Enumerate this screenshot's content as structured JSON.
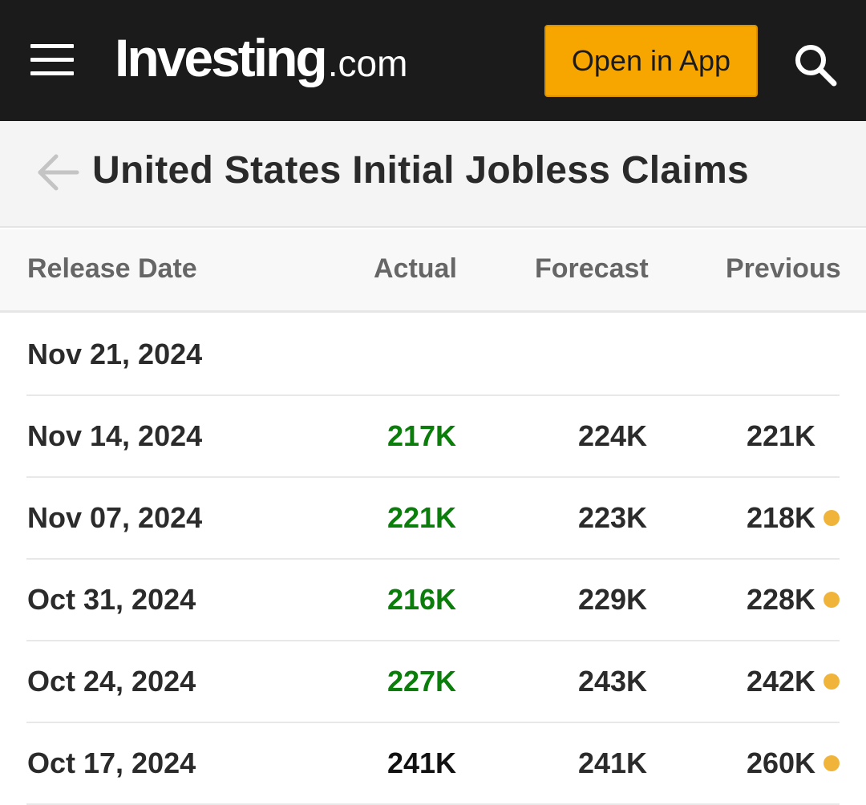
{
  "header": {
    "logo_main": "Investing",
    "logo_suffix": ".com",
    "open_app_label": "Open in App",
    "colors": {
      "bar": "#1b1b1b",
      "accent": "#f7a600"
    }
  },
  "page": {
    "title": "United States Initial Jobless Claims"
  },
  "table": {
    "columns": [
      "Release Date",
      "Actual",
      "Forecast",
      "Previous"
    ],
    "rows": [
      {
        "date": "Nov 21, 2024",
        "actual": "",
        "forecast": "",
        "previous": "",
        "revised": false
      },
      {
        "date": "Nov 14, 2024",
        "actual": "217K",
        "forecast": "224K",
        "previous": "221K",
        "revised": false,
        "actual_status": "better"
      },
      {
        "date": "Nov 07, 2024",
        "actual": "221K",
        "forecast": "223K",
        "previous": "218K",
        "revised": true,
        "actual_status": "better"
      },
      {
        "date": "Oct 31, 2024",
        "actual": "216K",
        "forecast": "229K",
        "previous": "228K",
        "revised": true,
        "actual_status": "better"
      },
      {
        "date": "Oct 24, 2024",
        "actual": "227K",
        "forecast": "243K",
        "previous": "242K",
        "revised": true,
        "actual_status": "better"
      },
      {
        "date": "Oct 17, 2024",
        "actual": "241K",
        "forecast": "241K",
        "previous": "260K",
        "revised": true,
        "actual_status": "neutral"
      }
    ],
    "colors": {
      "better": "#0a7d0a",
      "neutral": "#111111",
      "revised_dot": "#f0b43a"
    }
  }
}
